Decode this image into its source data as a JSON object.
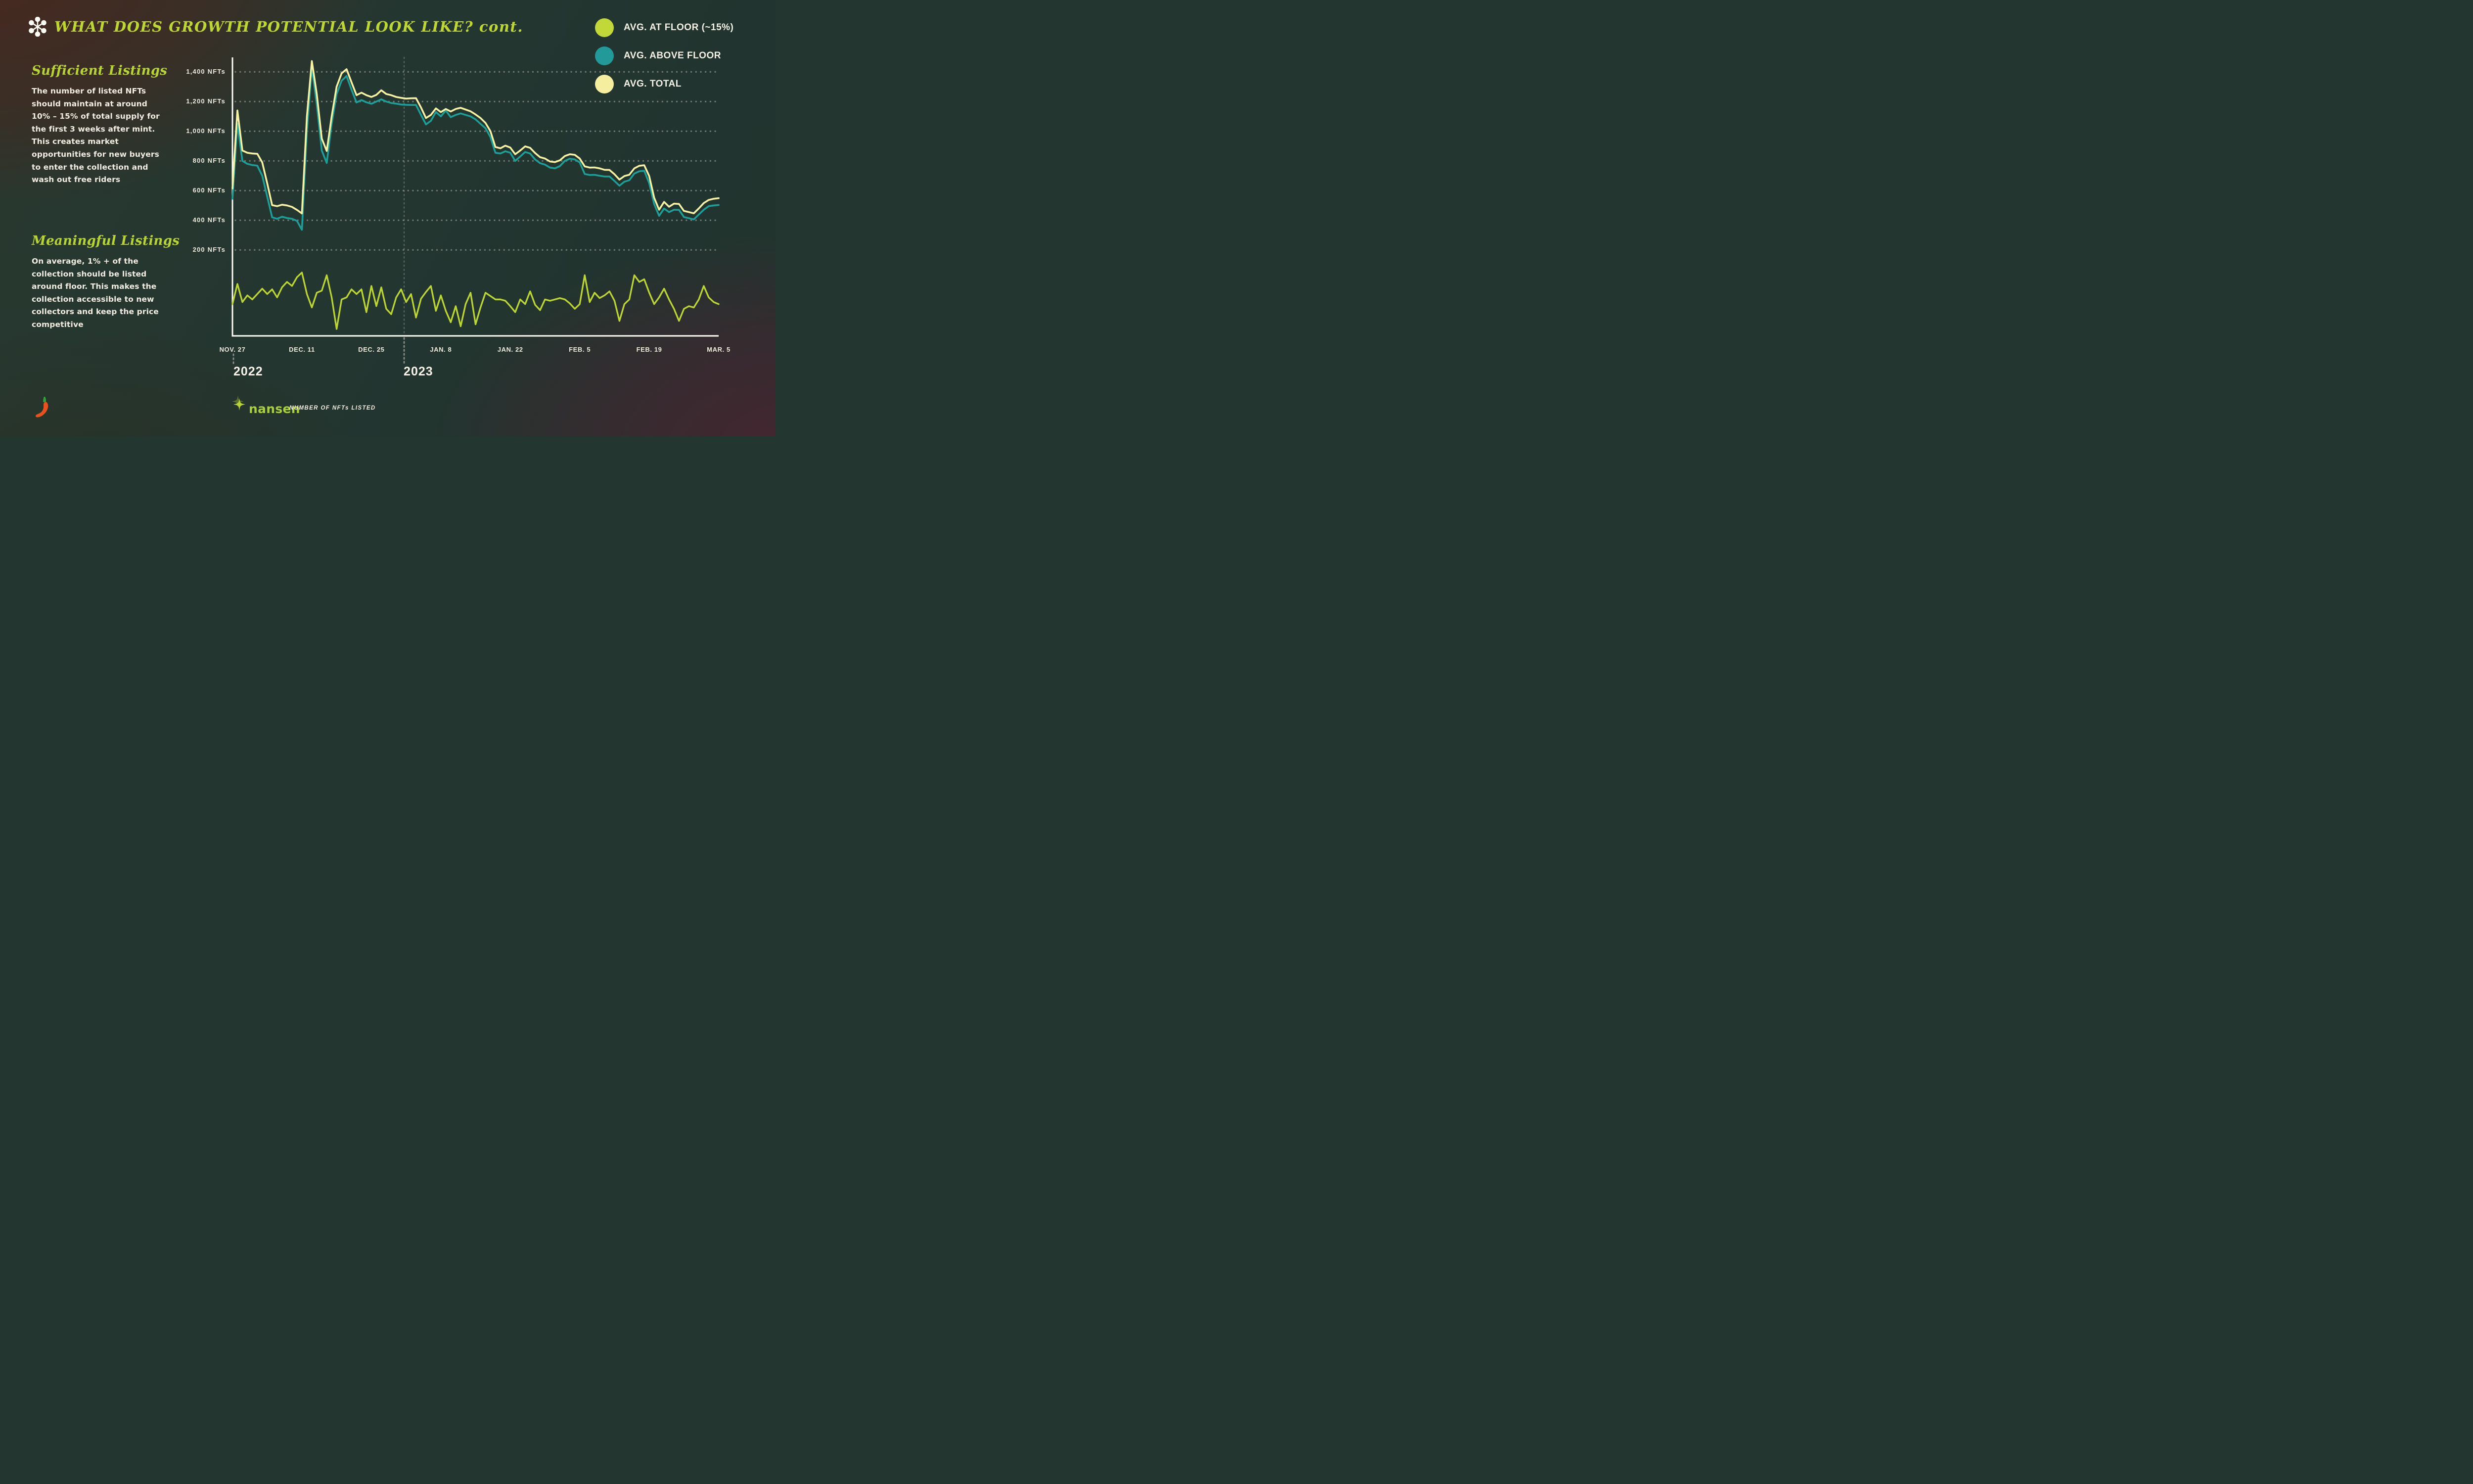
{
  "title": {
    "text": "WHAT DOES GROWTH POTENTIAL LOOK LIKE? cont."
  },
  "legend": {
    "items": [
      {
        "label": "AVG. AT FLOOR (~15%)",
        "color": "#c2d838"
      },
      {
        "label": "AVG. ABOVE FLOOR",
        "color": "#239a9a"
      },
      {
        "label": "AVG. TOTAL",
        "color": "#f4ee9e"
      }
    ]
  },
  "sections": [
    {
      "heading": "Sufficient Listings",
      "body": "The number of listed NFTs should maintain at around 10% – 15% of total supply for the first 3 weeks after mint. This creates market opportunities for new buyers to enter the collection and wash out free riders"
    },
    {
      "heading": "Meaningful Listings",
      "body": "On average, 1% + of the collection should be listed around floor. This makes the collection accessible to new collectors and keep the price competitive"
    }
  ],
  "footer": {
    "brand": "nansen",
    "caption": "NUMBER OF NFTs LISTED",
    "chili_color": "#e8511e",
    "stem_color": "#2ba23c"
  },
  "chart_data": {
    "type": "line",
    "title": "NUMBER OF NFTs LISTED",
    "grid": "dotted horizontal gridlines, white axes",
    "legend_position": "top-right",
    "x_start_date": "NOV. 27 2022",
    "x_end_date": "MAR. 5 2023",
    "x_unit": "days (daily points, day 0 = Nov 27 2022)",
    "x_ticks": [
      {
        "label": "NOV. 27",
        "day": 0
      },
      {
        "label": "DEC. 11",
        "day": 14
      },
      {
        "label": "DEC. 25",
        "day": 28
      },
      {
        "label": "JAN. 8",
        "day": 42
      },
      {
        "label": "JAN. 22",
        "day": 56
      },
      {
        "label": "FEB. 5",
        "day": 70
      },
      {
        "label": "FEB. 19",
        "day": 84
      },
      {
        "label": "MAR. 5",
        "day": 98
      }
    ],
    "year_markers": [
      {
        "label": "2022",
        "day": 0.2
      },
      {
        "label": "2023",
        "day": 34.6
      }
    ],
    "y_ticks": [
      {
        "label": "1,400 NFTs",
        "value": 1400
      },
      {
        "label": "1,200 NFTs",
        "value": 1200
      },
      {
        "label": "1,000 NFTs",
        "value": 1000
      },
      {
        "label": "800 NFTs",
        "value": 800
      },
      {
        "label": "600 NFTs",
        "value": 600
      },
      {
        "label": "400 NFTs",
        "value": 400
      },
      {
        "label": "200 NFTs",
        "value": 200
      }
    ],
    "ylim": [
      200,
      1400
    ],
    "series": [
      {
        "name": "AVG. TOTAL",
        "color": "#f7f2a3",
        "values": [
          615,
          1140,
          870,
          855,
          850,
          848,
          790,
          650,
          502,
          495,
          505,
          500,
          490,
          470,
          446,
          1100,
          1473,
          1250,
          950,
          867,
          1100,
          1300,
          1390,
          1418,
          1330,
          1243,
          1260,
          1243,
          1231,
          1245,
          1276,
          1251,
          1243,
          1231,
          1225,
          1220,
          1222,
          1223,
          1160,
          1089,
          1110,
          1154,
          1129,
          1150,
          1133,
          1150,
          1158,
          1146,
          1134,
          1113,
          1089,
          1056,
          1000,
          894,
          885,
          903,
          890,
          845,
          870,
          898,
          888,
          853,
          825,
          816,
          796,
          792,
          804,
          833,
          845,
          841,
          816,
          763,
          755,
          756,
          750,
          740,
          739,
          710,
          674,
          698,
          707,
          750,
          767,
          771,
          698,
          552,
          471,
          524,
          491,
          512,
          510,
          463,
          455,
          447,
          480,
          516,
          537,
          545,
          549
        ]
      },
      {
        "name": "AVG. ABOVE FLOOR",
        "color": "#1d9f99",
        "values": [
          545,
          1050,
          800,
          780,
          772,
          768,
          700,
          560,
          420,
          410,
          424,
          415,
          410,
          396,
          336,
          1000,
          1431,
          1180,
          870,
          786,
          1050,
          1250,
          1340,
          1372,
          1280,
          1194,
          1210,
          1195,
          1185,
          1200,
          1215,
          1200,
          1190,
          1186,
          1180,
          1178,
          1177,
          1177,
          1110,
          1046,
          1070,
          1130,
          1100,
          1140,
          1095,
          1110,
          1120,
          1110,
          1100,
          1080,
          1050,
          1020,
          960,
          855,
          850,
          865,
          855,
          800,
          830,
          860,
          850,
          810,
          785,
          775,
          755,
          750,
          765,
          800,
          815,
          810,
          790,
          712,
          705,
          706,
          700,
          695,
          695,
          665,
          633,
          660,
          670,
          715,
          730,
          734,
          650,
          510,
          430,
          479,
          455,
          471,
          470,
          422,
          414,
          406,
          439,
          471,
          495,
          500,
          503
        ]
      },
      {
        "name": "AVG. AT FLOOR (~15%)",
        "color": "#bcd631",
        "band": "independent mini-band drawn below the main axis scale (no labeled y-axis)",
        "scale_note": "relative units 0-200 estimated from pixel height of the band",
        "values": [
          90,
          150,
          96,
          116,
          104,
          120,
          136,
          120,
          134,
          110,
          140,
          156,
          144,
          170,
          184,
          120,
          80,
          124,
          130,
          176,
          110,
          16,
          104,
          110,
          134,
          120,
          134,
          66,
          144,
          84,
          140,
          76,
          60,
          110,
          134,
          96,
          120,
          50,
          106,
          126,
          144,
          70,
          116,
          70,
          36,
          84,
          24,
          90,
          124,
          30,
          80,
          124,
          114,
          104,
          104,
          100,
          84,
          66,
          104,
          90,
          128,
          88,
          72,
          104,
          100,
          104,
          108,
          104,
          92,
          76,
          90,
          176,
          96,
          124,
          108,
          116,
          128,
          100,
          40,
          90,
          104,
          176,
          156,
          164,
          124,
          90,
          110,
          136,
          104,
          76,
          40,
          76,
          84,
          80,
          104,
          144,
          110,
          96,
          90
        ]
      }
    ]
  }
}
